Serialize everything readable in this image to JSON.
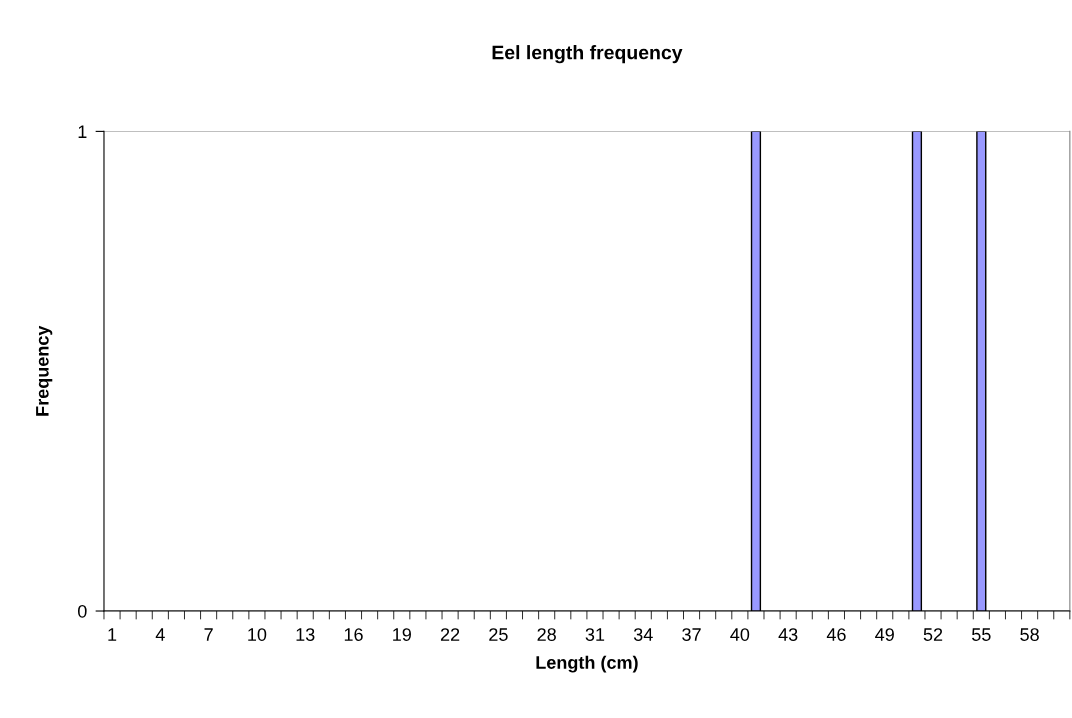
{
  "chart_data": {
    "type": "bar",
    "title": "Eel length frequency",
    "xlabel": "Length (cm)",
    "ylabel": "Frequency",
    "categories": [
      "1",
      null,
      null,
      "4",
      null,
      null,
      "7",
      null,
      null,
      "10",
      null,
      null,
      "13",
      null,
      null,
      "16",
      null,
      null,
      "19",
      null,
      null,
      "22",
      null,
      null,
      "25",
      null,
      null,
      "28",
      null,
      null,
      "31",
      null,
      null,
      "34",
      null,
      null,
      "37",
      null,
      null,
      "40",
      null,
      null,
      "43",
      null,
      null,
      "46",
      null,
      null,
      "49",
      null,
      null,
      "52",
      null,
      null,
      "55",
      null,
      null,
      "58",
      null,
      null
    ],
    "values": [
      0,
      0,
      0,
      0,
      0,
      0,
      0,
      0,
      0,
      0,
      0,
      0,
      0,
      0,
      0,
      0,
      0,
      0,
      0,
      0,
      0,
      0,
      0,
      0,
      0,
      0,
      0,
      0,
      0,
      0,
      0,
      0,
      0,
      0,
      0,
      0,
      0,
      0,
      0,
      0,
      1,
      0,
      0,
      0,
      0,
      0,
      0,
      0,
      0,
      0,
      1,
      0,
      0,
      0,
      1,
      0,
      0,
      0,
      0,
      0
    ],
    "color": "#9999ff",
    "ylim": [
      0,
      1
    ],
    "yticks": [
      0,
      1
    ],
    "grid": "y",
    "legend": false
  }
}
